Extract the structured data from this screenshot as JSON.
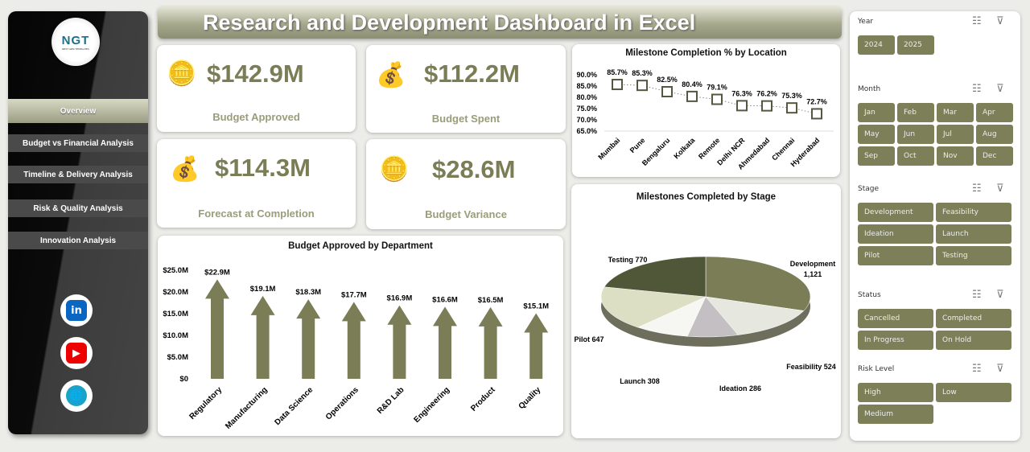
{
  "title": "Research and  Development Dashboard in Excel",
  "logo": {
    "text": "NGT",
    "sub": "NEXT GEN TEMPLATES"
  },
  "nav": [
    {
      "label": "Overview",
      "active": true
    },
    {
      "label": "Budget vs Financial Analysis"
    },
    {
      "label": "Timeline & Delivery  Analysis"
    },
    {
      "label": "Risk & Quality Analysis"
    },
    {
      "label": "Innovation Analysis"
    }
  ],
  "social": [
    {
      "icon": "linkedin-icon",
      "label": "in"
    },
    {
      "icon": "youtube-icon",
      "label": "▶"
    },
    {
      "icon": "globe-icon",
      "label": "🌐"
    }
  ],
  "kpis": [
    {
      "value": "$142.9M",
      "label": "Budget Approved",
      "icon": "coins-icon"
    },
    {
      "value": "$112.2M",
      "label": "Budget Spent",
      "icon": "money-bag-icon"
    },
    {
      "value": "$114.3M",
      "label": "Forecast at Completion",
      "icon": "money-bag-icon"
    },
    {
      "value": "$28.6M",
      "label": "Budget Variance",
      "icon": "coins-icon"
    }
  ],
  "colors": {
    "accent": "#7c7f58",
    "bar": "#7a7d55"
  },
  "chart_data": [
    {
      "type": "bar",
      "title": "Budget Approved by Department",
      "categories": [
        "Regulatory",
        "Manufacturing",
        "Data Science",
        "Operations",
        "R&D Lab",
        "Engineering",
        "Product",
        "Quality"
      ],
      "values": [
        22.9,
        19.1,
        18.3,
        17.7,
        16.9,
        16.6,
        16.5,
        15.1
      ],
      "data_labels": [
        "$22.9M",
        "$19.1M",
        "$18.3M",
        "$17.7M",
        "$16.9M",
        "$16.6M",
        "$16.5M",
        "$15.1M"
      ],
      "unit": "$M",
      "ylim": [
        0,
        25
      ],
      "yticks": [
        "$0",
        "$5.0M",
        "$10.0M",
        "$15.0M",
        "$20.0M",
        "$25.0M"
      ],
      "grid": false
    },
    {
      "type": "line",
      "title": "Milestone Completion % by Location",
      "categories": [
        "Mumbai",
        "Pune",
        "Bengaluru",
        "Kolkata",
        "Remote",
        "Delhi NCR",
        "Ahmedabad",
        "Chennai",
        "Hyderabad"
      ],
      "values": [
        85.7,
        85.3,
        82.5,
        80.4,
        79.1,
        76.3,
        76.2,
        75.3,
        72.7
      ],
      "data_labels": [
        "85.7%",
        "85.3%",
        "82.5%",
        "80.4%",
        "79.1%",
        "76.3%",
        "76.2%",
        "75.3%",
        "72.7%"
      ],
      "ylim": [
        65,
        90
      ],
      "yticks": [
        "65.0%",
        "70.0%",
        "75.0%",
        "80.0%",
        "85.0%",
        "90.0%"
      ],
      "grid": false
    },
    {
      "type": "pie",
      "title": "Milestones Completed by Stage",
      "categories": [
        "Development",
        "Feasibility",
        "Ideation",
        "Launch",
        "Pilot",
        "Testing"
      ],
      "values": [
        1121,
        524,
        286,
        308,
        647,
        770
      ],
      "data_labels": [
        "Development 1,121",
        "Feasibility 524",
        "Ideation 286",
        "Launch 308",
        "Pilot 647",
        "Testing 770"
      ],
      "colors": [
        "#7a7d55",
        "#e6e7de",
        "#c4bfc2",
        "#f6f6f2",
        "#dcdfc4",
        "#505638"
      ]
    }
  ],
  "slicers": [
    {
      "title": "Year",
      "items": [
        "2024",
        "2025"
      ]
    },
    {
      "title": "Month",
      "items": [
        "Jan",
        "Feb",
        "Mar",
        "Apr",
        "May",
        "Jun",
        "Jul",
        "Aug",
        "Sep",
        "Oct",
        "Nov",
        "Dec"
      ]
    },
    {
      "title": "Stage",
      "items": [
        "Development",
        "Feasibility",
        "Ideation",
        "Launch",
        "Pilot",
        "Testing"
      ]
    },
    {
      "title": "Status",
      "items": [
        "Cancelled",
        "Completed",
        "In Progress",
        "On Hold"
      ]
    },
    {
      "title": "Risk Level",
      "items": [
        "High",
        "Low",
        "Medium"
      ]
    }
  ]
}
